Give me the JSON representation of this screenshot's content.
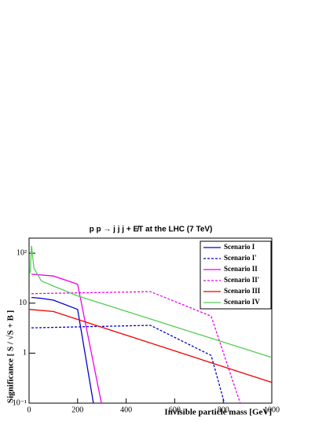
{
  "chart_data": {
    "type": "line",
    "title": "p p → j j j + E̸T at the LHC (7 TeV)",
    "x_label": "Invisible particle mass [GeV]",
    "y_label": "Significance [ S / √S + B ]",
    "xlim": [
      0,
      1000
    ],
    "xticks": [
      0,
      200,
      400,
      600,
      800,
      1000
    ],
    "ylim": [
      0.1,
      200
    ],
    "log_y": true,
    "yticks": [
      {
        "value": 0.1,
        "label": "10⁻¹"
      },
      1,
      10,
      {
        "value": 100,
        "label": "10²"
      }
    ],
    "legend": "upper right",
    "series": [
      {
        "name": "Scenario I",
        "color": "#0000cc",
        "style": "solid",
        "x": [
          10,
          50,
          100,
          200,
          265
        ],
        "values": [
          13,
          12.5,
          11.5,
          7.5,
          0.1
        ]
      },
      {
        "name": "Scenario I'",
        "color": "#0000cc",
        "style": "dashed",
        "x": [
          10,
          500,
          750,
          805
        ],
        "values": [
          3.2,
          3.6,
          0.9,
          0.1
        ]
      },
      {
        "name": "Scenario II",
        "color": "#ee00ee",
        "style": "solid",
        "x": [
          10,
          100,
          200,
          298
        ],
        "values": [
          38,
          35,
          24,
          0.1
        ]
      },
      {
        "name": "Scenario II'",
        "color": "#ee00ee",
        "style": "dashed",
        "x": [
          10,
          500,
          750,
          870
        ],
        "values": [
          15.5,
          17,
          5.5,
          0.1
        ]
      },
      {
        "name": "Scenario III",
        "color": "#ee0000",
        "style": "solid",
        "x": [
          0,
          100,
          1000
        ],
        "values": [
          7.5,
          6.8,
          0.26
        ]
      },
      {
        "name": "Scenario IV",
        "color": "#55cc55",
        "style": "solid",
        "x": [
          5,
          10,
          20,
          50,
          100,
          200,
          1000
        ],
        "values": [
          40,
          140,
          50,
          28,
          22,
          14,
          0.82
        ]
      }
    ]
  }
}
